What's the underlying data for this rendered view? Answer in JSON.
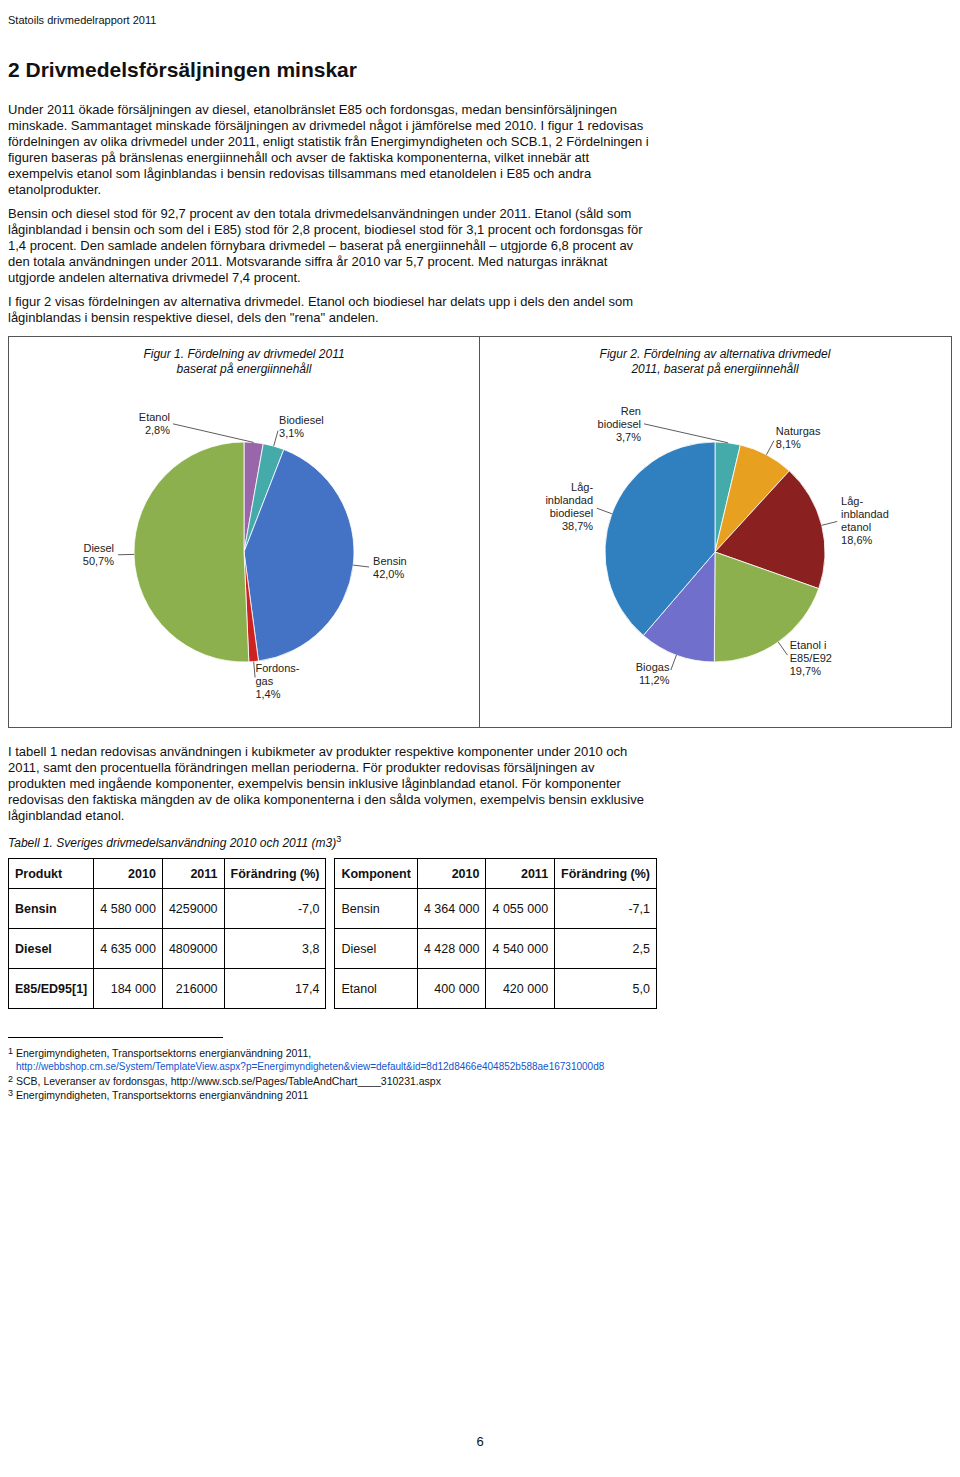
{
  "chart_data": [
    {
      "type": "pie",
      "title": "Figur 1. Fördelning av drivmedel 2011\nbaserat på energiinnehåll",
      "categories": [
        "Etanol",
        "Biodiesel",
        "Bensin",
        "Fordons-\ngas",
        "Diesel"
      ],
      "values": [
        2.8,
        3.1,
        42.0,
        1.4,
        50.7
      ],
      "value_labels": [
        "2,8%",
        "3,1%",
        "42,0%",
        "1,4%",
        "50,7%"
      ],
      "colors": [
        "#9966aa",
        "#44aaaa",
        "#4472c4",
        "#cc2222",
        "#8db04e"
      ],
      "data_labels": true
    },
    {
      "type": "pie",
      "title": "Figur 2. Fördelning av alternativa drivmedel\n2011, baserat på energiinnehåll",
      "categories": [
        "Ren\nbiodiesel",
        "Naturgas",
        "Låg-\ninblandad\netanol",
        "Etanol i\nE85/E92",
        "Biogas",
        "Låg-\ninblandad\nbiodiesel"
      ],
      "values": [
        3.7,
        8.1,
        18.6,
        19.7,
        11.2,
        38.7
      ],
      "value_labels": [
        "3,7%",
        "8,1%",
        "18,6%",
        "19,7%",
        "11,2%",
        "38,7%"
      ],
      "colors": [
        "#44aaaa",
        "#e8a020",
        "#8b2020",
        "#8db04e",
        "#7070cc",
        "#3080c0"
      ],
      "data_labels": true
    }
  ],
  "page": {
    "header": "Statoils drivmedelrapport 2011",
    "title": "2    Drivmedelsförsäljningen minskar",
    "paragraphs_before": [
      [
        "Under 2011 ökade försäljningen av diesel, etanolbränslet E85 och fordonsgas, medan bensinförsäljningen",
        "minskade. Sammantaget minskade försäljningen av drivmedel något i jämförelse med 2010. I figur 1 redovisas",
        "fördelningen av olika drivmedel under 2011, enligt statistik från Energimyndigheten och SCB.1, 2 Fördelningen i",
        "figuren baseras på bränslenas energiinnehåll och avser de faktiska komponenterna, vilket innebär att",
        "exempelvis etanol som låginblandas i bensin redovisas tillsammans med etanoldelen i E85 och andra",
        "etanolprodukter."
      ],
      [
        "Bensin och diesel stod för 92,7 procent av den totala drivmedelsanvändningen under 2011. Etanol (såld som",
        "låginblandad i bensin och som del i E85) stod för 2,8 procent, biodiesel stod för 3,1 procent och fordonsgas för",
        "1,4 procent. Den samlade andelen förnybara drivmedel – baserat på energiinnehåll – utgjorde 6,8 procent av",
        "den totala användningen under 2011. Motsvarande siffra år 2010 var 5,7 procent. Med naturgas inräknat",
        "utgjorde andelen alternativa drivmedel 7,4 procent."
      ],
      [
        "I figur 2 visas fördelningen av alternativa drivmedel. Etanol och biodiesel har delats upp i dels den andel som",
        "låginblandas i bensin respektive diesel, dels den \"rena\" andelen."
      ]
    ],
    "paragraph_after": [
      "I tabell 1 nedan redovisas användningen i kubikmeter av produkter respektive komponenter under 2010 och",
      "2011, samt den procentuella förändringen mellan perioderna. För produkter redovisas försäljningen av",
      "produkten med ingående komponenter, exempelvis bensin inklusive låginblandad etanol. För komponenter",
      "redovisas den faktiska mängden av de olika komponenterna i den sålda volymen, exempelvis bensin exklusive",
      "låginblandad etanol."
    ],
    "table": {
      "title": "Tabell 1. Sveriges drivmedelsanvändning 2010 och 2011 (m3)",
      "title_sup": "3",
      "left": {
        "headers": [
          "Produkt",
          "2010",
          "2011",
          "Förändring (%)"
        ],
        "rows": [
          [
            "Bensin",
            "4 580 000",
            "4259000",
            "-7,0"
          ],
          [
            "Diesel",
            "4 635 000",
            "4809000",
            "3,8"
          ],
          [
            "E85/ED95[1]",
            "184 000",
            "216000",
            "17,4"
          ]
        ]
      },
      "right": {
        "headers": [
          "Komponent",
          "2010",
          "2011",
          "Förändring (%)"
        ],
        "rows": [
          [
            "Bensin",
            "4 364 000",
            "4 055 000",
            "-7,1"
          ],
          [
            "Diesel",
            "4 428 000",
            "4 540 000",
            "2,5"
          ],
          [
            "Etanol",
            "400 000",
            "420 000",
            "5,0"
          ]
        ]
      }
    },
    "footnotes": [
      {
        "mark": "1",
        "lines": [
          "Energimyndigheten, Transportsektorns energianvändning 2011,",
          "http://webbshop.cm.se/System/TemplateView.aspx?p=Energimyndigheten&view=default&id=8d12d8466e404852b588ae16731000d8"
        ]
      },
      {
        "mark": "2",
        "lines": [
          "SCB, Leveranser av fordonsgas, http://www.scb.se/Pages/TableAndChart____310231.aspx"
        ]
      },
      {
        "mark": "3",
        "lines": [
          "Energimyndigheten, Transportsektorns energianvändning 2011"
        ]
      }
    ],
    "page_number": "6"
  }
}
